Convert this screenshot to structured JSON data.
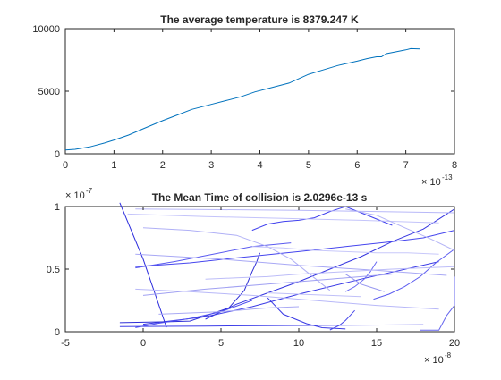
{
  "chart_data": [
    {
      "type": "line",
      "title": "The average temperature is 8379.247 K",
      "xlabel": "",
      "ylabel": "",
      "xlim": [
        0,
        8e-13
      ],
      "ylim": [
        0,
        10000
      ],
      "x_multiplier": {
        "base": "× 10",
        "exponent": "-13"
      },
      "xticks": [
        0,
        1e-13,
        2e-13,
        3e-13,
        4e-13,
        5e-13,
        6e-13,
        7e-13,
        8e-13
      ],
      "xtick_labels": [
        "0",
        "1",
        "2",
        "3",
        "4",
        "5",
        "6",
        "7",
        "8"
      ],
      "yticks": [
        0,
        5000,
        10000
      ],
      "ytick_labels": [
        "0",
        "5000",
        "10000"
      ],
      "grid": false,
      "series": [
        {
          "color": "#0072BD",
          "x": [
            0,
            2e-14,
            5e-14,
            8e-14,
            1e-13,
            1.3e-13,
            1.6e-13,
            2e-13,
            2.3e-13,
            2.6e-13,
            3e-13,
            3.3e-13,
            3.6e-13,
            3.9e-13,
            4.2e-13,
            4.6e-13,
            5e-13,
            5.3e-13,
            5.6e-13,
            6e-13,
            6.2e-13,
            6.4e-13,
            6.5e-13,
            6.6e-13,
            6.8e-13,
            7e-13,
            7.1e-13,
            7.3e-13
          ],
          "values": [
            300,
            360,
            550,
            860,
            1100,
            1500,
            2000,
            2650,
            3100,
            3550,
            3950,
            4250,
            4550,
            4950,
            5250,
            5650,
            6350,
            6700,
            7050,
            7400,
            7600,
            7750,
            7750,
            8000,
            8150,
            8300,
            8400,
            8380
          ]
        }
      ]
    },
    {
      "type": "line",
      "title": "The Mean Time of collision is 2.0296e-13 s",
      "xlabel": "",
      "ylabel": "",
      "xlim": [
        -5e-08,
        2e-07
      ],
      "ylim": [
        0,
        1e-07
      ],
      "x_multiplier": {
        "base": "× 10",
        "exponent": "-8"
      },
      "y_multiplier": {
        "base": "× 10",
        "exponent": "-7"
      },
      "xticks": [
        -5e-08,
        0,
        5e-08,
        1e-07,
        1.5e-07,
        2e-07
      ],
      "xtick_labels": [
        "-5",
        "0",
        "5",
        "10",
        "15",
        "20"
      ],
      "yticks": [
        0,
        5e-08,
        1e-07
      ],
      "ytick_labels": [
        "0",
        "0.5",
        "1"
      ],
      "grid": false,
      "series": [
        {
          "color": "#2B2BDD",
          "x": [
            -1.5e-08,
            0,
            1.5e-08
          ],
          "values": [
            1.03e-07,
            5.8e-08,
            3.5e-09
          ]
        },
        {
          "color": "#3A3AE6",
          "x": [
            0,
            4e-08,
            7e-08,
            1e-07,
            1.4e-07,
            1.9e-07
          ],
          "values": [
            6e-09,
            1.2e-08,
            2e-08,
            3e-08,
            4.2e-08,
            5.6e-08
          ]
        },
        {
          "color": "#3535E0",
          "x": [
            4e-08,
            6e-08,
            8e-08,
            1e-07,
            1.2e-07,
            1.4e-07,
            1.6e-07,
            1.8e-07,
            2e-07
          ],
          "values": [
            1e-08,
            2.2e-08,
            3.1e-08,
            4e-08,
            5e-08,
            6e-08,
            7.2e-08,
            8.2e-08,
            9.8e-08
          ]
        },
        {
          "color": "#3C3CE8",
          "x": [
            -1.5e-08,
            4e-08,
            1e-07,
            1.8e-07
          ],
          "values": [
            4.1e-09,
            4.5e-09,
            5e-09,
            5.5e-09
          ]
        },
        {
          "color": "#4040EE",
          "x": [
            7e-08,
            8e-08,
            9e-08,
            1e-07,
            1.1e-07,
            1.2e-07,
            1.3e-07,
            1.4e-07,
            1.5e-07,
            1.6e-07
          ],
          "values": [
            8.1e-08,
            8.6e-08,
            8.8e-08,
            8.9e-08,
            9.1e-08,
            9.6e-08,
            1e-07,
            9.5e-08,
            9e-08,
            8.5e-08
          ]
        },
        {
          "color": "#2F2FD6",
          "x": [
            -1.5e-08,
            1.5e-08,
            3e-08,
            5.5e-08,
            6e-08,
            6.5e-08,
            7e-08,
            7.3e-08,
            7.5e-08
          ],
          "values": [
            7.2e-09,
            7.9e-09,
            8.5e-09,
            1.9e-08,
            2.6e-08,
            3.3e-08,
            4.8e-08,
            5.6e-08,
            6.3e-08
          ]
        },
        {
          "color": "#3939E4",
          "x": [
            8e-08,
            9e-08,
            1.05e-07,
            1.15e-07,
            1.3e-07
          ],
          "values": [
            2.7e-08,
            1.4e-08,
            6.4e-09,
            3.2e-09,
            2.2e-09
          ]
        },
        {
          "color": "#4646EE",
          "x": [
            -5e-09,
            3e-08,
            6e-08,
            1e-07,
            1.3e-07,
            1.6e-07,
            1.8e-07,
            2e-07
          ],
          "values": [
            5.2e-08,
            5.5e-08,
            5.9e-08,
            6.4e-08,
            6.8e-08,
            7.2e-08,
            7.5e-08,
            8.1e-08
          ]
        },
        {
          "color": "#5050F0",
          "x": [
            -5e-09,
            1e-08,
            3e-08,
            5e-08,
            7e-08
          ],
          "values": [
            3.3e-09,
            6.8e-09,
            1.05e-08,
            1.6e-08,
            2.5e-08
          ]
        },
        {
          "color": "#4848EA",
          "x": [
            1.2e-07,
            1.26e-07,
            1.3e-07,
            1.33e-07,
            1.36e-07
          ],
          "values": [
            1.4e-09,
            5e-09,
            9e-09,
            1.3e-08,
            1.7e-08
          ]
        },
        {
          "color": "#5A5AF0",
          "x": [
            -5e-09,
            2e-08,
            4.5e-08,
            7e-08,
            9.5e-08
          ],
          "values": [
            5.1e-08,
            5.6e-08,
            6.2e-08,
            6.8e-08,
            7.1e-08
          ]
        },
        {
          "color": "#6A6AF2",
          "x": [
            1.3e-07,
            1.36e-07,
            1.42e-07,
            1.46e-07,
            1.5e-07
          ],
          "values": [
            3.2e-08,
            3.6e-08,
            4.2e-08,
            4.8e-08,
            5.6e-08
          ]
        },
        {
          "color": "#5C5CF0",
          "x": [
            1.48e-07,
            1.58e-07,
            1.68e-07,
            1.78e-07,
            1.88e-07,
            2e-07
          ],
          "values": [
            2.6e-08,
            3e-08,
            3.6e-08,
            4.4e-08,
            5.5e-08,
            6.6e-08
          ]
        },
        {
          "color": "#6565EE",
          "x": [
            1.78e-07,
            1.9e-07,
            1.95e-07,
            2e-07,
            2e-07
          ],
          "values": [
            1.2e-09,
            1.3e-09,
            1.3e-08,
            2.1e-08,
            4.4e-08
          ]
        },
        {
          "color": "#B8B8F8",
          "x": [
            -5e-09,
            5e-08,
            1e-07,
            1.5e-07,
            2e-07
          ],
          "values": [
            9.8e-08,
            9.75e-08,
            9.7e-08,
            9.6e-08,
            9.5e-08
          ]
        },
        {
          "color": "#C4C4FA",
          "x": [
            -1e-08,
            4e-08,
            9e-08,
            1.4e-07,
            1.9e-07
          ],
          "values": [
            9.4e-08,
            9.2e-08,
            9.05e-08,
            8.9e-08,
            8.7e-08
          ]
        },
        {
          "color": "#A8A8F5",
          "x": [
            -5e-09,
            5e-08,
            1e-07,
            1.5e-07,
            1.95e-07
          ],
          "values": [
            6.2e-08,
            5.8e-08,
            5.3e-08,
            4.9e-08,
            4.5e-08
          ]
        },
        {
          "color": "#B0B0F6",
          "x": [
            0,
            3e-08,
            6e-08,
            8e-08,
            9.5e-08,
            1.1e-07,
            1.2e-07
          ],
          "values": [
            8.3e-08,
            8.1e-08,
            7.7e-08,
            6.8e-08,
            5.8e-08,
            4.3e-08,
            3.3e-08
          ]
        },
        {
          "color": "#BDBDF8",
          "x": [
            4e-08,
            6e-08,
            8e-08,
            1e-07,
            1.3e-07,
            1.6e-07,
            2e-07
          ],
          "values": [
            4.2e-08,
            4.3e-08,
            4.4e-08,
            4.6e-08,
            4.8e-08,
            5e-08,
            5.2e-08
          ]
        },
        {
          "color": "#A0A0F2",
          "x": [
            0,
            4e-08,
            8e-08,
            1.2e-07,
            1.6e-07
          ],
          "values": [
            2.9e-08,
            3.4e-08,
            3.8e-08,
            4.2e-08,
            4.6e-08
          ]
        },
        {
          "color": "#C8C8FA",
          "x": [
            7e-08,
            9e-08,
            1.1e-07,
            1.3e-07,
            1.5e-07,
            1.7e-07,
            1.9e-07
          ],
          "values": [
            6.8e-08,
            6.7e-08,
            6.5e-08,
            6.4e-08,
            6.3e-08,
            6.3e-08,
            6.2e-08
          ]
        },
        {
          "color": "#AAAAF4",
          "x": [
            1e-08,
            3e-08,
            5e-08,
            6e-08,
            7e-08,
            8e-08,
            1e-07
          ],
          "values": [
            1.4e-08,
            1.5e-08,
            1.6e-08,
            1.7e-08,
            1.8e-08,
            1.9e-08,
            2e-08
          ]
        },
        {
          "color": "#B4B4F6",
          "x": [
            1.3e-07,
            1.5e-07,
            1.7e-07,
            1.85e-07,
            2e-07
          ],
          "values": [
            9.8e-08,
            9.3e-08,
            8.2e-08,
            7.4e-08,
            6.5e-08
          ]
        },
        {
          "color": "#C0C0F8",
          "x": [
            8e-08,
            1e-07,
            1.2e-07,
            1.4e-07
          ],
          "values": [
            3.1e-08,
            3e-08,
            2.9e-08,
            2.8e-08
          ]
        },
        {
          "color": "#9898F0",
          "x": [
            1.3e-07,
            1.35e-07,
            1.4e-07,
            1.45e-07,
            1.5e-07,
            1.55e-07
          ],
          "values": [
            4.6e-08,
            4.2e-08,
            3.8e-08,
            3.6e-08,
            3.4e-08,
            3.2e-08
          ]
        },
        {
          "color": "#B8B8F8",
          "x": [
            -5e-09,
            3e-08,
            7e-08,
            1.1e-07,
            1.5e-07,
            1.9e-07
          ],
          "values": [
            3.4e-08,
            3.2e-08,
            2.9e-08,
            2.5e-08,
            2.1e-08,
            1.8e-08
          ]
        }
      ]
    }
  ]
}
